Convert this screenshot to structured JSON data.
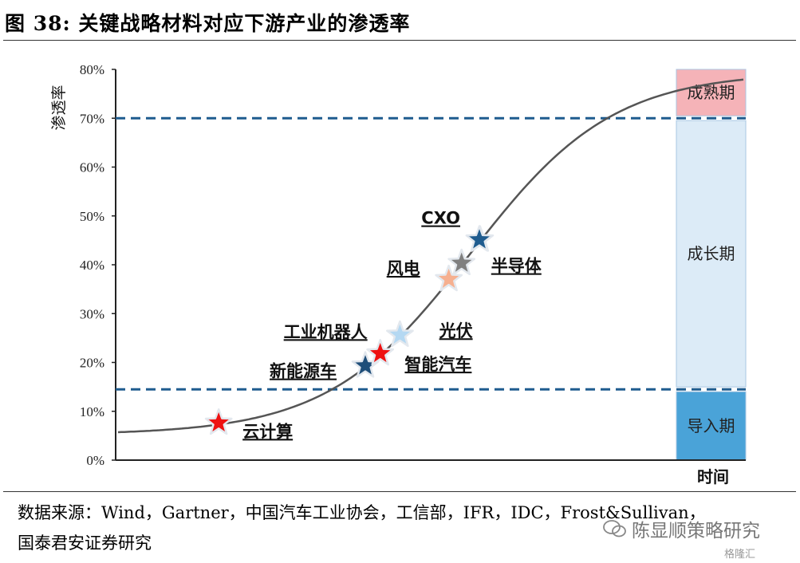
{
  "figure": {
    "title": "图 38:  关键战略材料对应下游产业的渗透率",
    "source_line1": "数据来源：Wind，Gartner，中国汽车工业协会，工信部，IFR，IDC，Frost&Sullivan，",
    "source_line2": "国泰君安证券研究",
    "watermark": "陈显顺策略研究",
    "logo": "格隆汇"
  },
  "chart_data": {
    "type": "scatter",
    "ylabel": "渗透率",
    "xlabel": "时间",
    "yticks": [
      "0%",
      "10%",
      "20%",
      "30%",
      "40%",
      "50%",
      "60%",
      "70%",
      "80%"
    ],
    "ylim": [
      0,
      80
    ],
    "thresholds": [
      14.5,
      70
    ],
    "phases": [
      {
        "name": "导入期",
        "from": 0,
        "to": 14.5,
        "color": "#4aa3d8"
      },
      {
        "name": "成长期",
        "from": 14.5,
        "to": 70,
        "color": "#dcebf7"
      },
      {
        "name": "成熟期",
        "from": 70,
        "to": 80,
        "color": "#f5b3b8"
      }
    ],
    "curve": {
      "description": "S-curve",
      "start": 5.2,
      "end": 79.5,
      "color": "#555555"
    },
    "points": [
      {
        "name": "云计算",
        "y": 7.3,
        "color": "#ee1111"
      },
      {
        "name": "新能源车",
        "y": 19,
        "color": "#1f4e79"
      },
      {
        "name": "工业机器人",
        "y": 21.5,
        "color": "#ee1111"
      },
      {
        "name": "智能汽车",
        "y": 25.3,
        "color": "#b4d8f2"
      },
      {
        "name": "光伏",
        "y": 36.7,
        "color": "#f6b090"
      },
      {
        "name": "风电",
        "y": 40,
        "color": "#808080"
      },
      {
        "name": "半导体",
        "y": 44.8,
        "color": "#1f5c8f"
      },
      {
        "name": "CXO",
        "y": 44.8,
        "color": "#1f5c8f"
      }
    ]
  }
}
